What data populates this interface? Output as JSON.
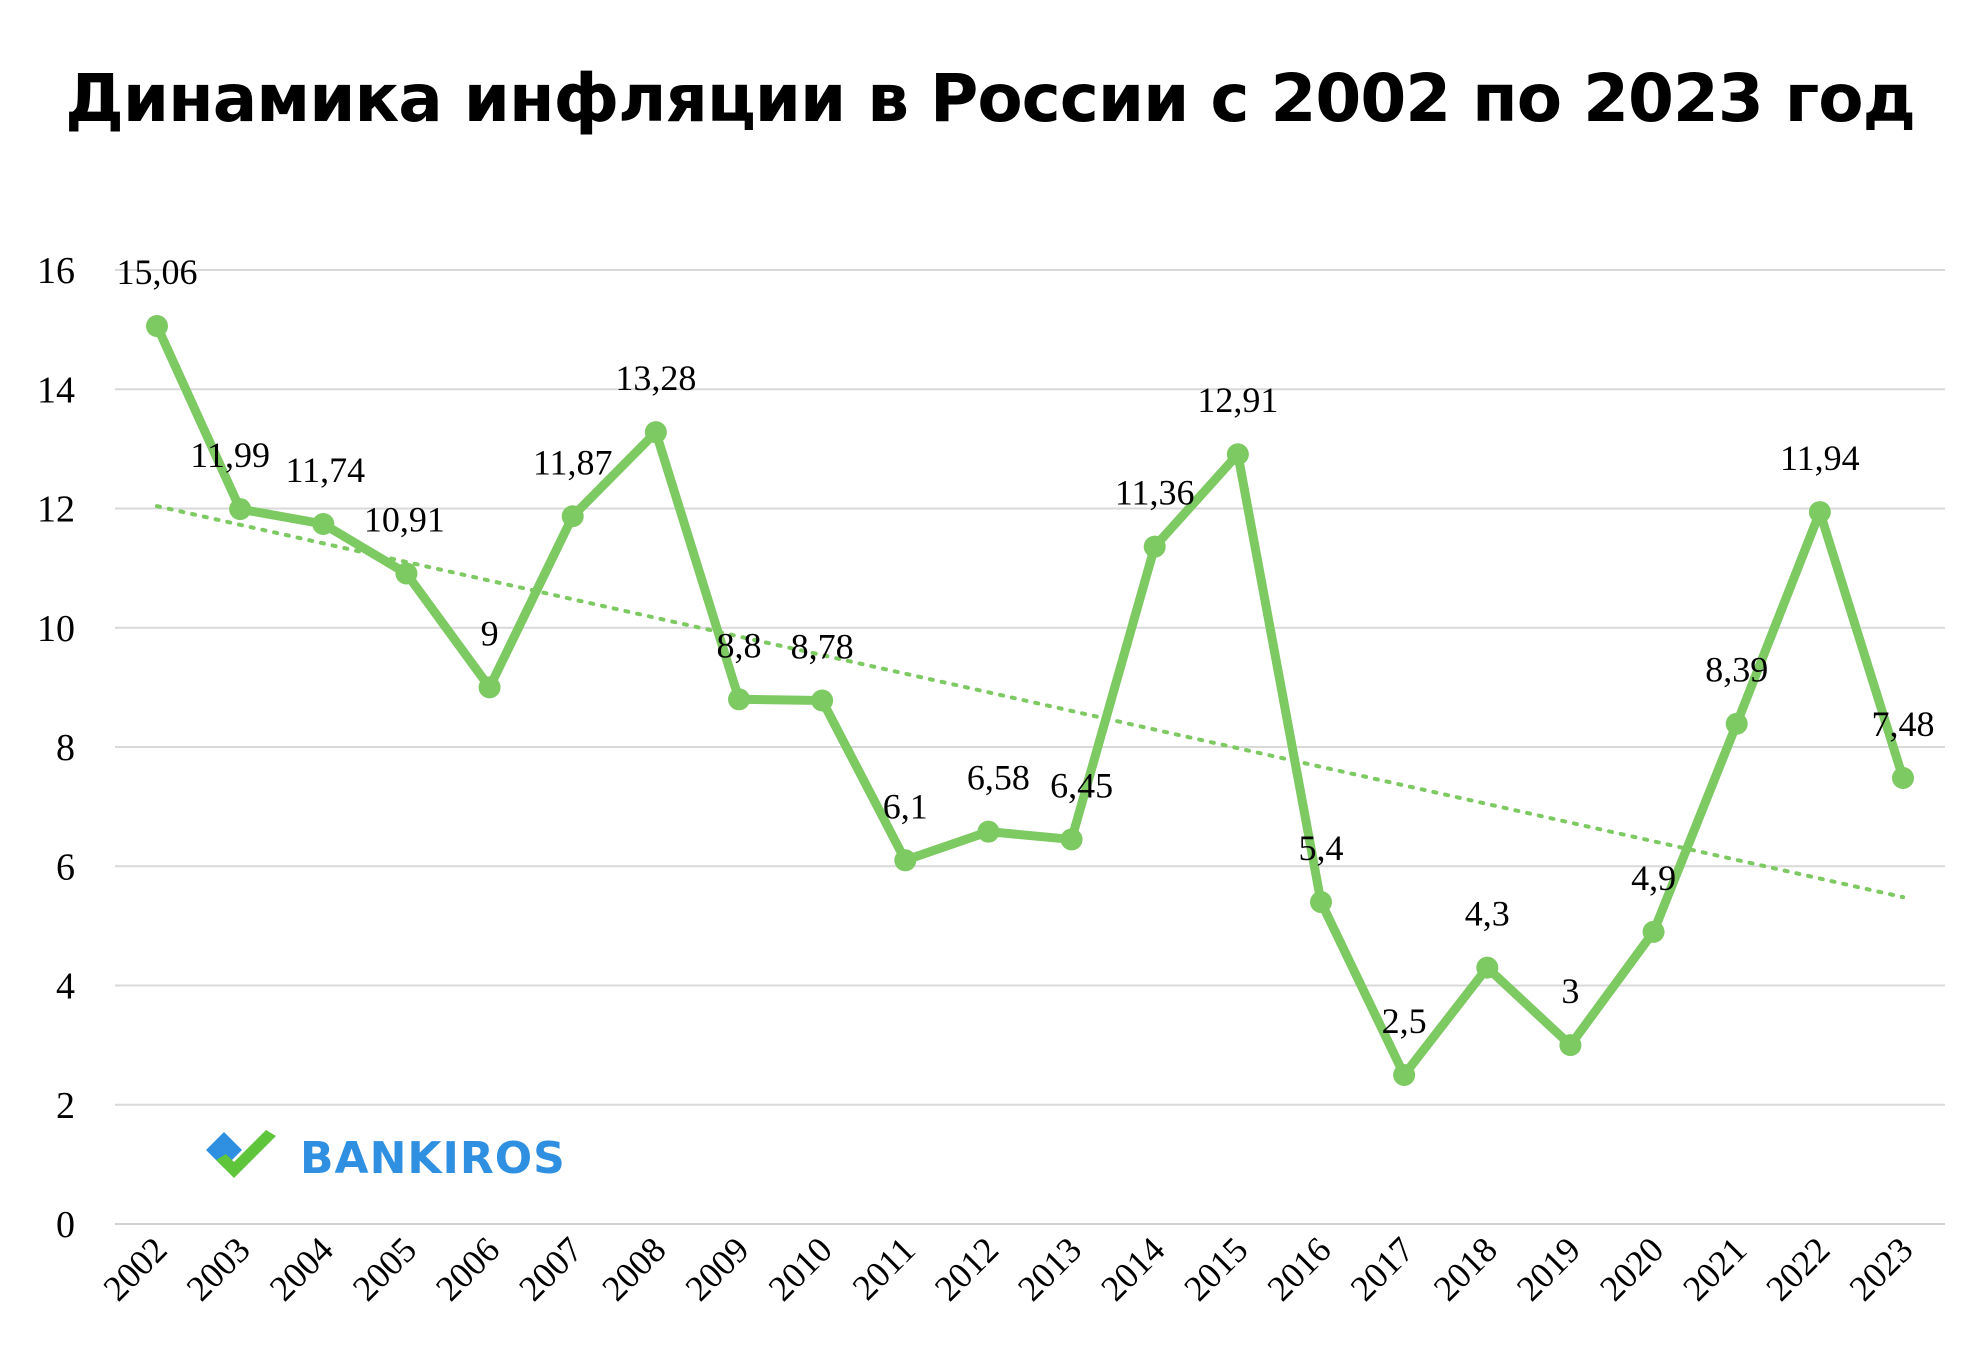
{
  "chart_data": {
    "type": "line",
    "title": "Динамика инфляции в России с 2002 по 2023 год",
    "xlabel": "",
    "ylabel": "",
    "ylim": [
      0,
      16
    ],
    "yticks": [
      "0",
      "2",
      "4",
      "6",
      "8",
      "10",
      "12",
      "14",
      "16"
    ],
    "grid": true,
    "categories": [
      "2002",
      "2003",
      "2004",
      "2005",
      "2006",
      "2007",
      "2008",
      "2009",
      "2010",
      "2011",
      "2012",
      "2013",
      "2014",
      "2015",
      "2016",
      "2017",
      "2018",
      "2019",
      "2020",
      "2021",
      "2022",
      "2023"
    ],
    "series": [
      {
        "values": [
          15.06,
          11.99,
          11.74,
          10.91,
          9,
          11.87,
          13.28,
          8.8,
          8.78,
          6.1,
          6.58,
          6.45,
          11.36,
          12.91,
          5.4,
          2.5,
          4.3,
          3,
          4.9,
          8.39,
          11.94,
          7.48
        ],
        "labels": [
          "15,06",
          "11,99",
          "11,74",
          "10,91",
          "9",
          "11,87",
          "13,28",
          "8,8",
          "8,78",
          "6,1",
          "6,58",
          "6,45",
          "11,36",
          "12,91",
          "5,4",
          "2,5",
          "4,3",
          "3",
          "4,9",
          "8,39",
          "11,94",
          "7,48"
        ],
        "color": "#7dc962"
      }
    ],
    "trendline": {
      "type": "linear",
      "style": "dotted",
      "color": "#7dc962"
    }
  },
  "logo": {
    "text": "BANKIROS",
    "text_color": "#2f8fe0",
    "mark_colors": [
      "#2f8fe0",
      "#5fc63c"
    ]
  }
}
